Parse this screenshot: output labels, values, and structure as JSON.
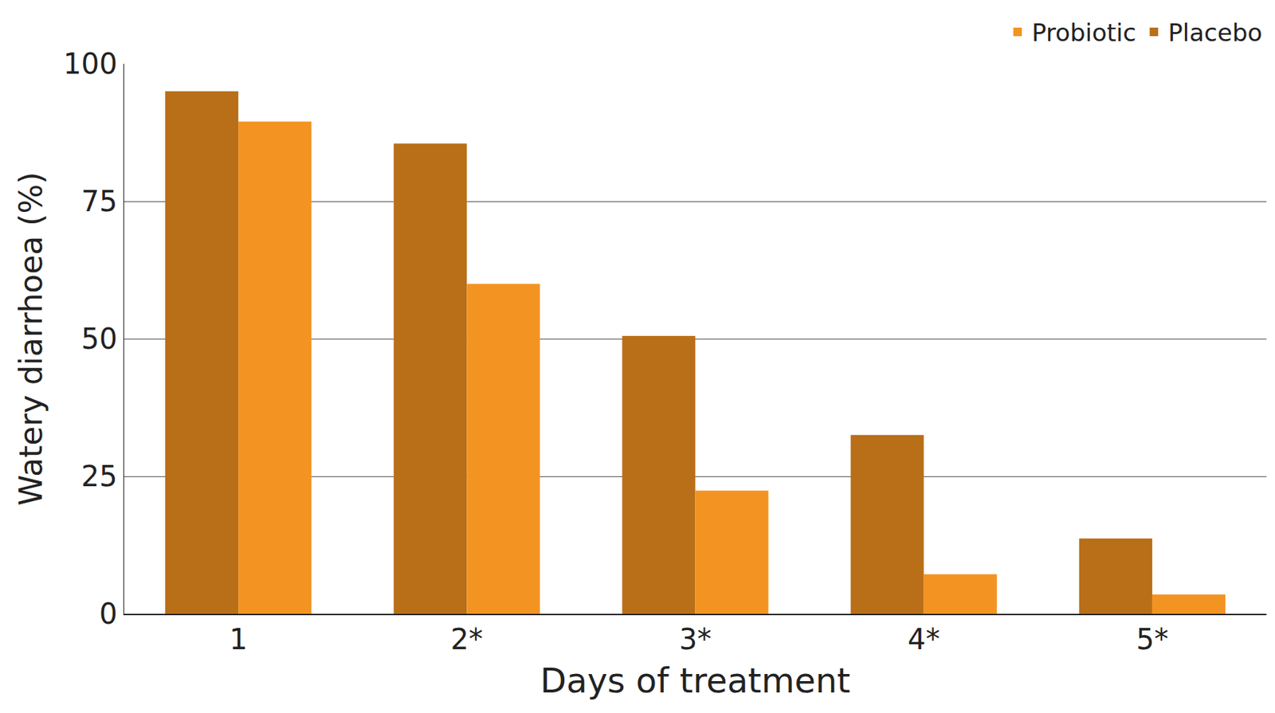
{
  "chart_data": {
    "type": "bar",
    "x_label": "Days of treatment",
    "y_label": "Watery diarrhoea (%)",
    "categories": [
      "1",
      "2*",
      "3*",
      "4*",
      "5*"
    ],
    "series": [
      {
        "name": "Placebo",
        "color": "#b86f18",
        "values": [
          95,
          85.5,
          50.5,
          32.5,
          13.7
        ]
      },
      {
        "name": "Probiotic",
        "color": "#f39422",
        "values": [
          89.5,
          60,
          22.4,
          7.2,
          3.5
        ]
      }
    ],
    "ylim": [
      0,
      100
    ],
    "yticks": [
      0,
      25,
      50,
      75,
      100
    ],
    "grid": true,
    "legend": "top right"
  }
}
